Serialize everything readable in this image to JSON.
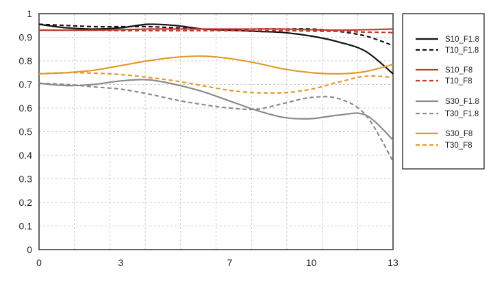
{
  "chart_data": {
    "type": "line",
    "xlabel": "",
    "ylabel": "",
    "xlim": [
      0,
      13
    ],
    "ylim": [
      0,
      1
    ],
    "x_ticks": [
      "0",
      "3",
      "7",
      "10",
      "13"
    ],
    "y_ticks": [
      "0",
      "0.1",
      "0.2",
      "0.3",
      "0.4",
      "0.5",
      "0.6",
      "0.7",
      "0.8",
      "0.9",
      "1"
    ],
    "grid": true,
    "legend_position": "right",
    "series": [
      {
        "name": "S10_F1.8",
        "color": "#111111",
        "dash": "solid",
        "x": [
          0,
          1,
          2,
          3,
          4,
          5,
          6,
          7,
          8,
          9,
          10,
          11,
          12,
          13
        ],
        "y": [
          0.955,
          0.94,
          0.935,
          0.94,
          0.955,
          0.95,
          0.935,
          0.93,
          0.925,
          0.92,
          0.905,
          0.88,
          0.84,
          0.745
        ]
      },
      {
        "name": "T10_F1.8",
        "color": "#111111",
        "dash": "dashed",
        "x": [
          0,
          1,
          2,
          3,
          4,
          5,
          6,
          7,
          8,
          9,
          10,
          11,
          12,
          13
        ],
        "y": [
          0.955,
          0.95,
          0.945,
          0.945,
          0.945,
          0.94,
          0.935,
          0.93,
          0.935,
          0.935,
          0.935,
          0.925,
          0.905,
          0.865
        ]
      },
      {
        "name": "S10_F8",
        "color": "#c0392b",
        "dash": "solid",
        "x": [
          0,
          1,
          2,
          3,
          4,
          5,
          6,
          7,
          8,
          9,
          10,
          11,
          12,
          13
        ],
        "y": [
          0.93,
          0.93,
          0.93,
          0.932,
          0.935,
          0.935,
          0.935,
          0.935,
          0.935,
          0.935,
          0.932,
          0.93,
          0.932,
          0.935
        ]
      },
      {
        "name": "T10_F8",
        "color": "#c0392b",
        "dash": "dashed",
        "x": [
          0,
          1,
          2,
          3,
          4,
          5,
          6,
          7,
          8,
          9,
          10,
          11,
          12,
          13
        ],
        "y": [
          0.93,
          0.93,
          0.93,
          0.928,
          0.928,
          0.928,
          0.928,
          0.928,
          0.928,
          0.928,
          0.926,
          0.925,
          0.922,
          0.92
        ]
      },
      {
        "name": "S30_F1.8",
        "color": "#8a8a8a",
        "dash": "solid",
        "x": [
          0,
          1,
          2,
          3,
          4,
          5,
          6,
          7,
          8,
          9,
          10,
          11,
          12,
          13
        ],
        "y": [
          0.705,
          0.695,
          0.7,
          0.715,
          0.72,
          0.7,
          0.67,
          0.63,
          0.59,
          0.56,
          0.555,
          0.57,
          0.57,
          0.465
        ]
      },
      {
        "name": "T30_F1.8",
        "color": "#8a8a8a",
        "dash": "dashed",
        "x": [
          0,
          1,
          2,
          3,
          4,
          5,
          6,
          7,
          8,
          9,
          10,
          11,
          12,
          13
        ],
        "y": [
          0.705,
          0.7,
          0.69,
          0.68,
          0.66,
          0.635,
          0.615,
          0.6,
          0.595,
          0.62,
          0.645,
          0.64,
          0.57,
          0.375
        ]
      },
      {
        "name": "S30_F8",
        "color": "#e39a2d",
        "dash": "solid",
        "x": [
          0,
          1,
          2,
          3,
          4,
          5,
          6,
          7,
          8,
          9,
          10,
          11,
          12,
          13
        ],
        "y": [
          0.745,
          0.75,
          0.76,
          0.78,
          0.8,
          0.815,
          0.82,
          0.81,
          0.79,
          0.765,
          0.75,
          0.745,
          0.755,
          0.785
        ]
      },
      {
        "name": "T30_F8",
        "color": "#e39a2d",
        "dash": "dashed",
        "x": [
          0,
          1,
          2,
          3,
          4,
          5,
          6,
          7,
          8,
          9,
          10,
          11,
          12,
          13
        ],
        "y": [
          0.745,
          0.75,
          0.748,
          0.742,
          0.73,
          0.715,
          0.695,
          0.675,
          0.665,
          0.665,
          0.68,
          0.71,
          0.735,
          0.73
        ]
      }
    ]
  }
}
